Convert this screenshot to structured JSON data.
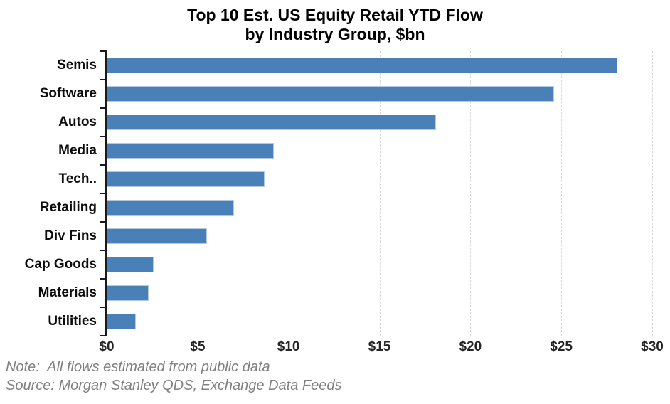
{
  "title": {
    "line1": "Top 10 Est. US Equity Retail YTD Flow",
    "line2": "by Industry Group, $bn"
  },
  "chart_data": {
    "type": "bar",
    "orientation": "horizontal",
    "title": "Top 10 Est. US Equity Retail YTD Flow by Industry Group, $bn",
    "categories": [
      "Semis",
      "Software",
      "Autos",
      "Media",
      "Tech..",
      "Retailing",
      "Div Fins",
      "Cap Goods",
      "Materials",
      "Utilities"
    ],
    "values": [
      28.1,
      24.6,
      18.1,
      9.2,
      8.7,
      7.0,
      5.5,
      2.6,
      2.3,
      1.6
    ],
    "xlabel": "",
    "ylabel": "",
    "xlim": [
      0,
      30
    ],
    "x_ticks": [
      0,
      5,
      10,
      15,
      20,
      25,
      30
    ],
    "x_tick_labels": [
      "$0",
      "$5",
      "$10",
      "$15",
      "$20",
      "$25",
      "$30"
    ],
    "grid": "vertical-dashed",
    "legend": "none"
  },
  "colors": {
    "bar_fill": "#4a80b8",
    "bar_border": "#b3c9e2",
    "gridline": "#d6d6d6",
    "axis": "#1a1a1a",
    "note_text": "#808080",
    "title_text": "#000000"
  },
  "notes": {
    "note": "Note:  All flows estimated from public data",
    "source": "Source: Morgan Stanley QDS, Exchange Data Feeds"
  }
}
